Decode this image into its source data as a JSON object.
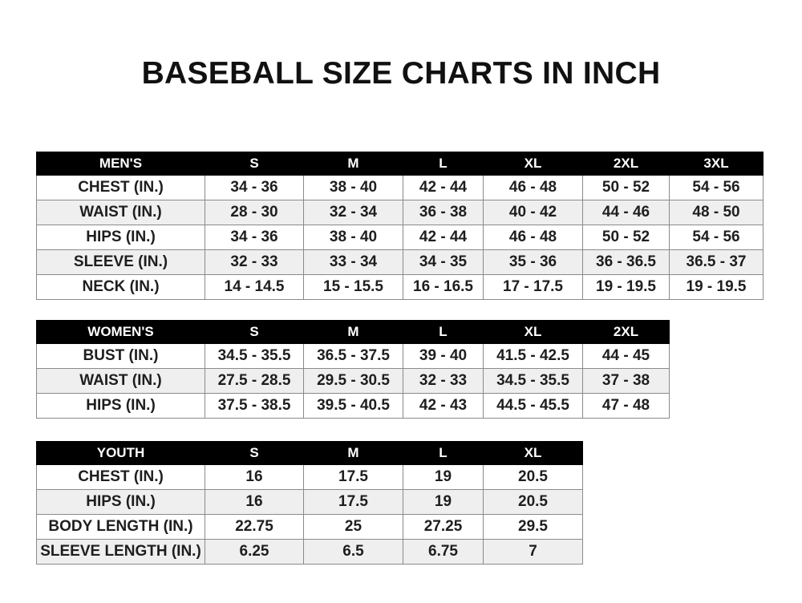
{
  "title": "BASEBALL SIZE CHARTS IN INCH",
  "tables": {
    "men": {
      "header": [
        "MEN'S",
        "S",
        "M",
        "L",
        "XL",
        "2XL",
        "3XL"
      ],
      "rows": [
        [
          "CHEST (IN.)",
          "34 - 36",
          "38 - 40",
          "42 - 44",
          "46 - 48",
          "50 - 52",
          "54 - 56"
        ],
        [
          "WAIST (IN.)",
          "28 - 30",
          "32 - 34",
          "36 - 38",
          "40 - 42",
          "44 - 46",
          "48 - 50"
        ],
        [
          "HIPS (IN.)",
          "34 - 36",
          "38 - 40",
          "42 - 44",
          "46 - 48",
          "50 - 52",
          "54 - 56"
        ],
        [
          "SLEEVE (IN.)",
          "32 - 33",
          "33 - 34",
          "34 - 35",
          "35 - 36",
          "36 - 36.5",
          "36.5 - 37"
        ],
        [
          "NECK (IN.)",
          "14 - 14.5",
          "15 - 15.5",
          "16 - 16.5",
          "17 - 17.5",
          "19 - 19.5",
          "19 - 19.5"
        ]
      ]
    },
    "women": {
      "header": [
        "WOMEN'S",
        "S",
        "M",
        "L",
        "XL",
        "2XL"
      ],
      "rows": [
        [
          "BUST (IN.)",
          "34.5 - 35.5",
          "36.5 - 37.5",
          "39 - 40",
          "41.5 - 42.5",
          "44 - 45"
        ],
        [
          "WAIST (IN.)",
          "27.5 - 28.5",
          "29.5 - 30.5",
          "32 - 33",
          "34.5 - 35.5",
          "37 - 38"
        ],
        [
          "HIPS (IN.)",
          "37.5 - 38.5",
          "39.5 - 40.5",
          "42 - 43",
          "44.5 - 45.5",
          "47 - 48"
        ]
      ]
    },
    "youth": {
      "header": [
        "YOUTH",
        "S",
        "M",
        "L",
        "XL"
      ],
      "rows": [
        [
          "CHEST (IN.)",
          "16",
          "17.5",
          "19",
          "20.5"
        ],
        [
          "HIPS (IN.)",
          "16",
          "17.5",
          "19",
          "20.5"
        ],
        [
          "BODY LENGTH (IN.)",
          "22.75",
          "25",
          "27.25",
          "29.5"
        ],
        [
          "SLEEVE LENGTH (IN.)",
          "6.25",
          "6.5",
          "6.75",
          "7"
        ]
      ]
    }
  }
}
